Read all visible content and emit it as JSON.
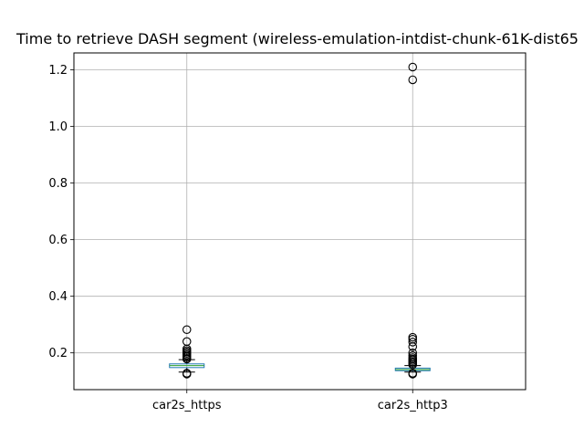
{
  "chart_data": {
    "type": "box",
    "title": "Time to retrieve DASH segment (wireless-emulation-intdist-chunk-61K-dist65",
    "xlabel": "",
    "ylabel": "",
    "categories": [
      "car2s_https",
      "car2s_http3"
    ],
    "ylim": [
      0.07,
      1.26
    ],
    "yticks": [
      0.2,
      0.4,
      0.6,
      0.8,
      1.0,
      1.2
    ],
    "ytick_labels": [
      "0.2",
      "0.4",
      "0.6",
      "0.8",
      "1.0",
      "1.2"
    ],
    "grid": true,
    "series": [
      {
        "category": "car2s_https",
        "whisker_low": 0.132,
        "q1": 0.148,
        "median": 0.155,
        "q3": 0.161,
        "whisker_high": 0.176,
        "outliers": [
          0.128,
          0.125,
          0.178,
          0.183,
          0.188,
          0.193,
          0.198,
          0.203,
          0.208,
          0.214,
          0.24,
          0.282
        ]
      },
      {
        "category": "car2s_http3",
        "whisker_low": 0.132,
        "q1": 0.137,
        "median": 0.141,
        "q3": 0.146,
        "whisker_high": 0.155,
        "outliers": [
          0.128,
          0.125,
          0.158,
          0.163,
          0.168,
          0.173,
          0.178,
          0.183,
          0.19,
          0.2,
          0.222,
          0.238,
          0.248,
          0.255,
          1.165,
          1.21
        ]
      }
    ],
    "colors": {
      "box": "#1f77b4",
      "median": "#2ca02c",
      "whisker": "#000000",
      "grid": "#b0b0b0",
      "outlier": "#000000"
    }
  }
}
